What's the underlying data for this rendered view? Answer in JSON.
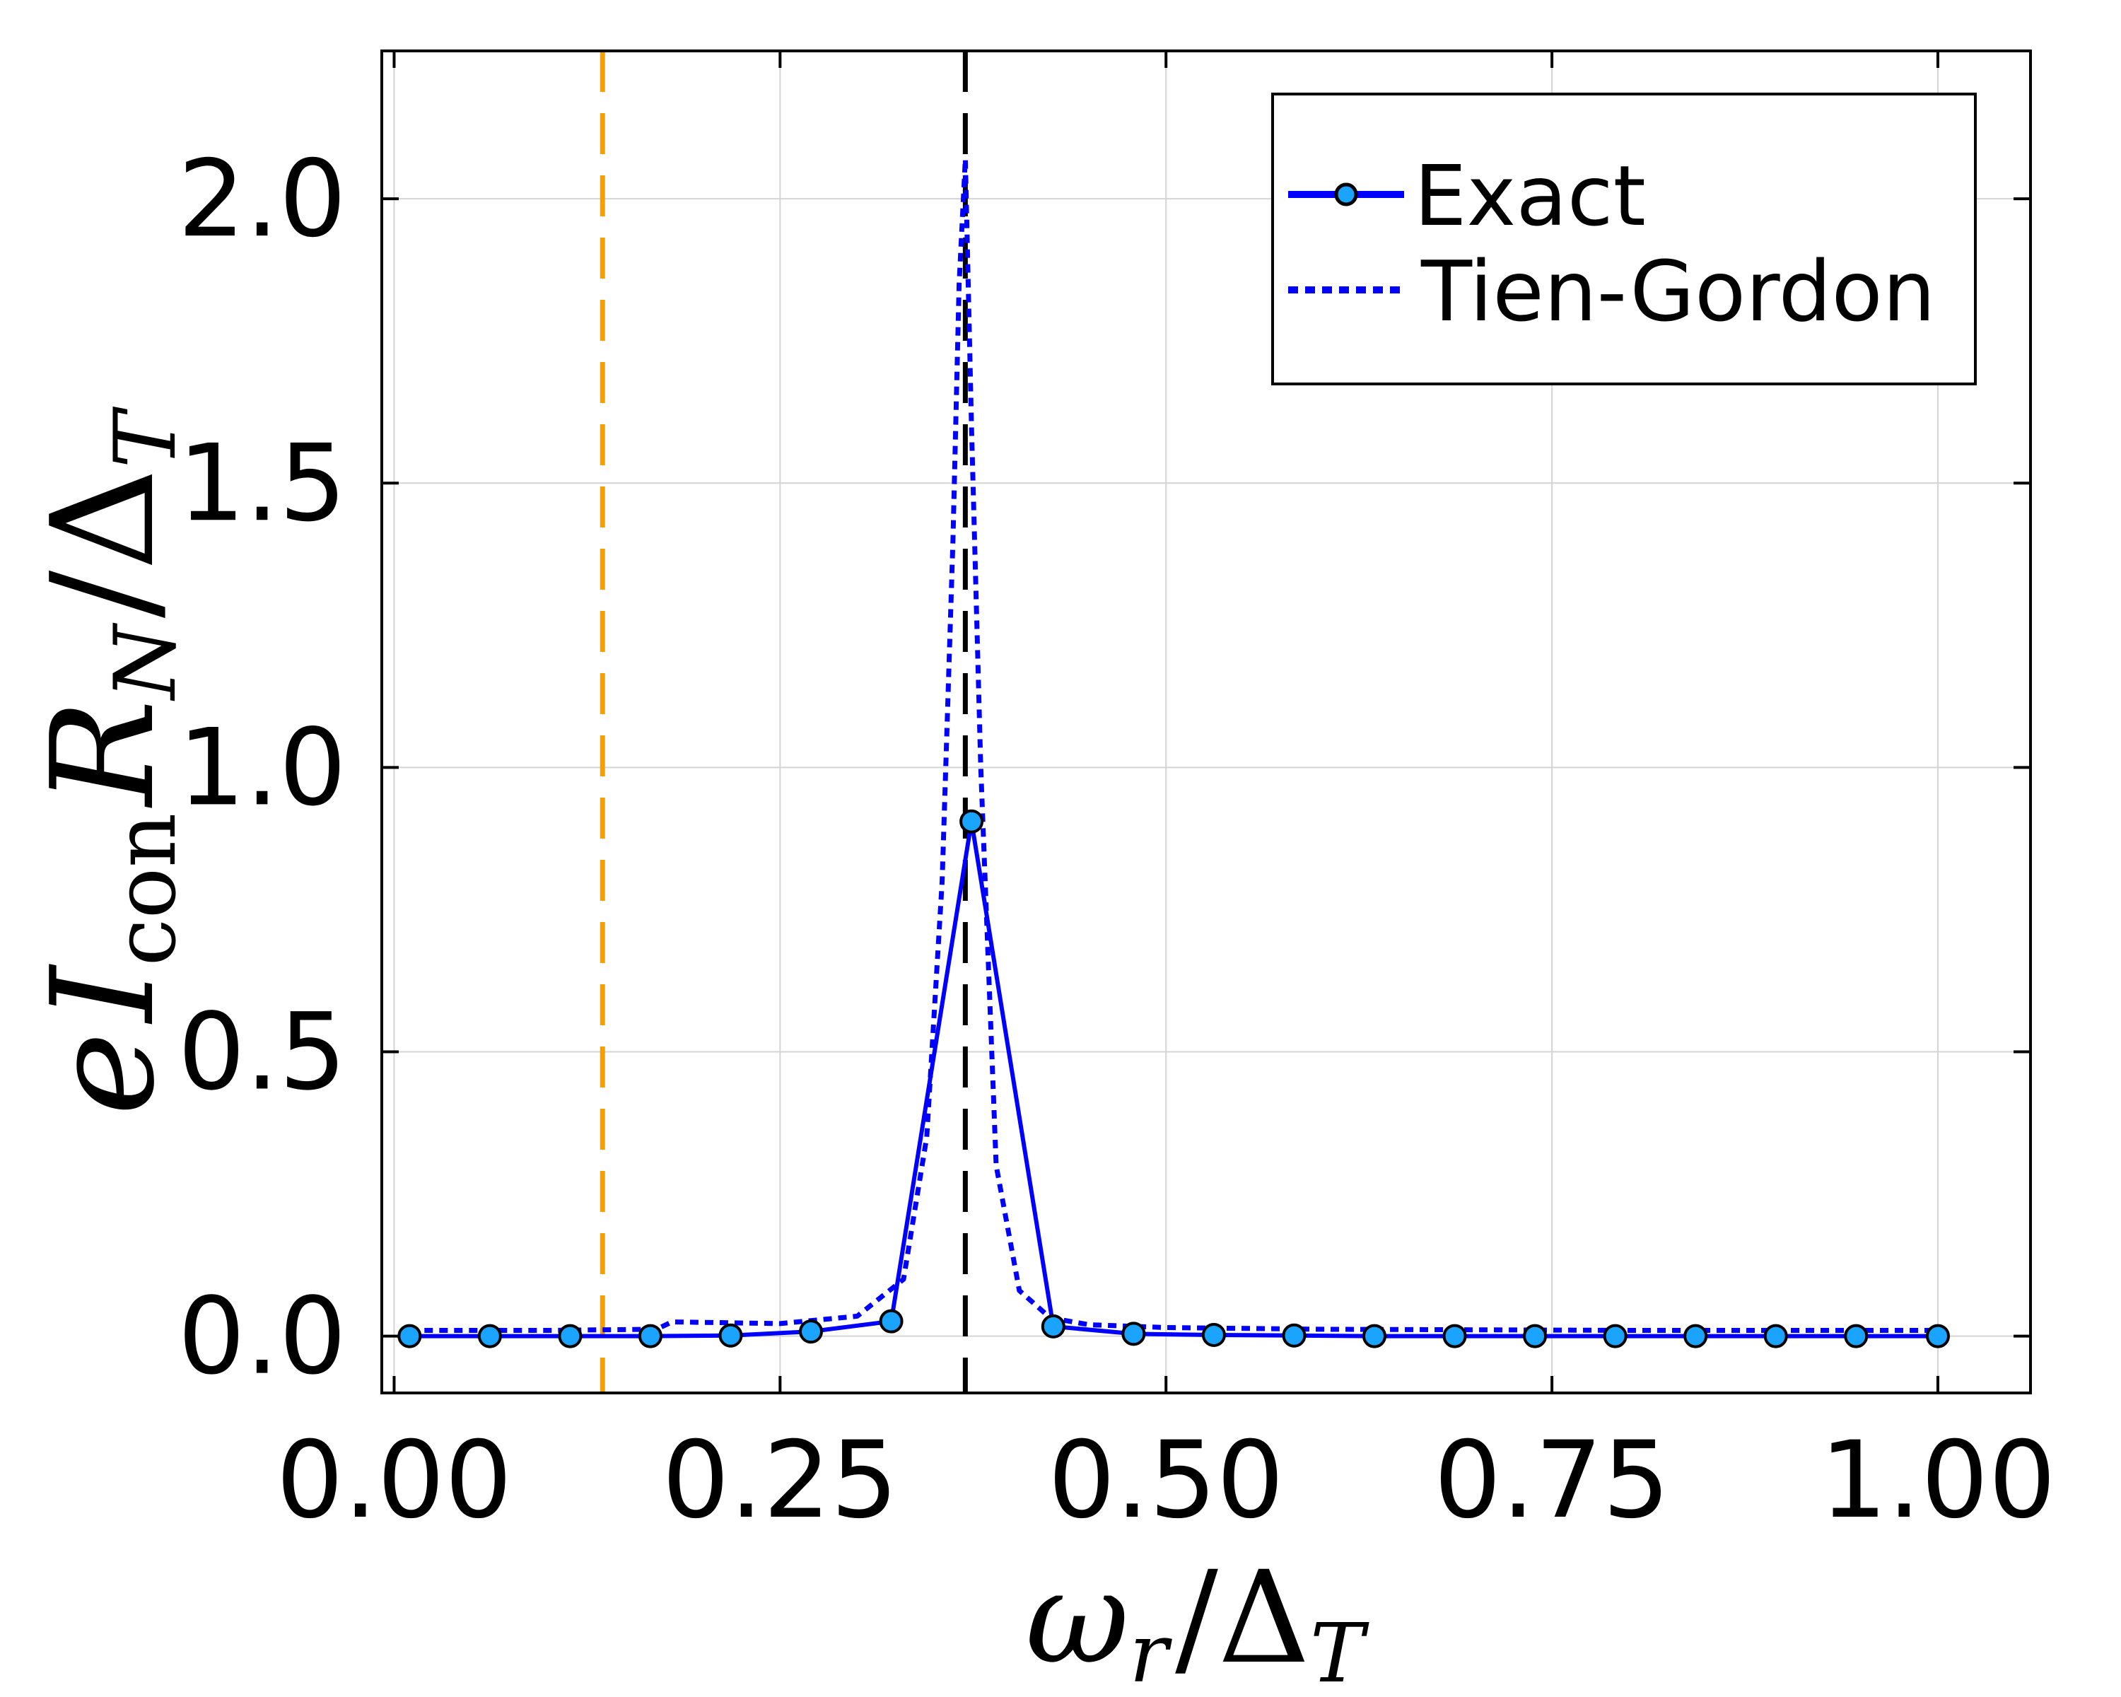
{
  "chart_data": {
    "type": "line",
    "title": "",
    "xlabel": {
      "base": "ω",
      "sub": "r",
      "slash": "/",
      "delta": "Δ",
      "delta_sub": "T"
    },
    "ylabel": {
      "e": "e",
      "I": "I",
      "I_sub": "con",
      "R": "R",
      "R_sub": "N",
      "slash": "/",
      "delta": "Δ",
      "delta_sub": "T"
    },
    "xlim": [
      -0.008,
      1.06
    ],
    "ylim": [
      -0.1,
      2.26
    ],
    "x_ticks": [
      {
        "value": 0.0,
        "label": "0.00"
      },
      {
        "value": 0.25,
        "label": "0.25"
      },
      {
        "value": 0.5,
        "label": "0.50"
      },
      {
        "value": 0.75,
        "label": "0.75"
      },
      {
        "value": 1.0,
        "label": "1.00"
      }
    ],
    "y_ticks": [
      {
        "value": 0.0,
        "label": "0.0"
      },
      {
        "value": 0.5,
        "label": "0.5"
      },
      {
        "value": 1.0,
        "label": "1.0"
      },
      {
        "value": 1.5,
        "label": "1.5"
      },
      {
        "value": 2.0,
        "label": "2.0"
      }
    ],
    "grid": true,
    "legend_position": "top-right",
    "vertical_lines": [
      {
        "x": 0.135,
        "color": "#f5a000",
        "style": "dashed"
      },
      {
        "x": 0.37,
        "color": "#000000",
        "style": "dashed"
      }
    ],
    "series": [
      {
        "name": "Exact",
        "style": "solid-markers",
        "line_color": "#0000ff",
        "marker_fill": "#1aa3ff",
        "x": [
          0.01,
          0.062,
          0.114,
          0.166,
          0.218,
          0.27,
          0.322,
          0.374,
          0.427,
          0.479,
          0.531,
          0.583,
          0.635,
          0.687,
          0.739,
          0.791,
          0.843,
          0.895,
          0.947,
          1.0
        ],
        "y": [
          0.0,
          0.0,
          0.0,
          0.0,
          0.001,
          0.008,
          0.026,
          0.905,
          0.017,
          0.004,
          0.002,
          0.001,
          0.0,
          0.0,
          0.0,
          0.0,
          0.0,
          0.0,
          0.0,
          0.0
        ]
      },
      {
        "name": "Tien-Gordon",
        "style": "dotted",
        "line_color": "#0000ff",
        "x": [
          0.01,
          0.1,
          0.17,
          0.18,
          0.25,
          0.3,
          0.33,
          0.345,
          0.355,
          0.362,
          0.366,
          0.37,
          0.374,
          0.38,
          0.39,
          0.405,
          0.425,
          0.45,
          0.5,
          0.6,
          0.8,
          1.0
        ],
        "y": [
          0.01,
          0.01,
          0.012,
          0.025,
          0.022,
          0.035,
          0.1,
          0.35,
          0.8,
          1.4,
          1.85,
          2.07,
          1.6,
          1.0,
          0.3,
          0.08,
          0.032,
          0.02,
          0.015,
          0.012,
          0.01,
          0.01
        ]
      }
    ]
  }
}
